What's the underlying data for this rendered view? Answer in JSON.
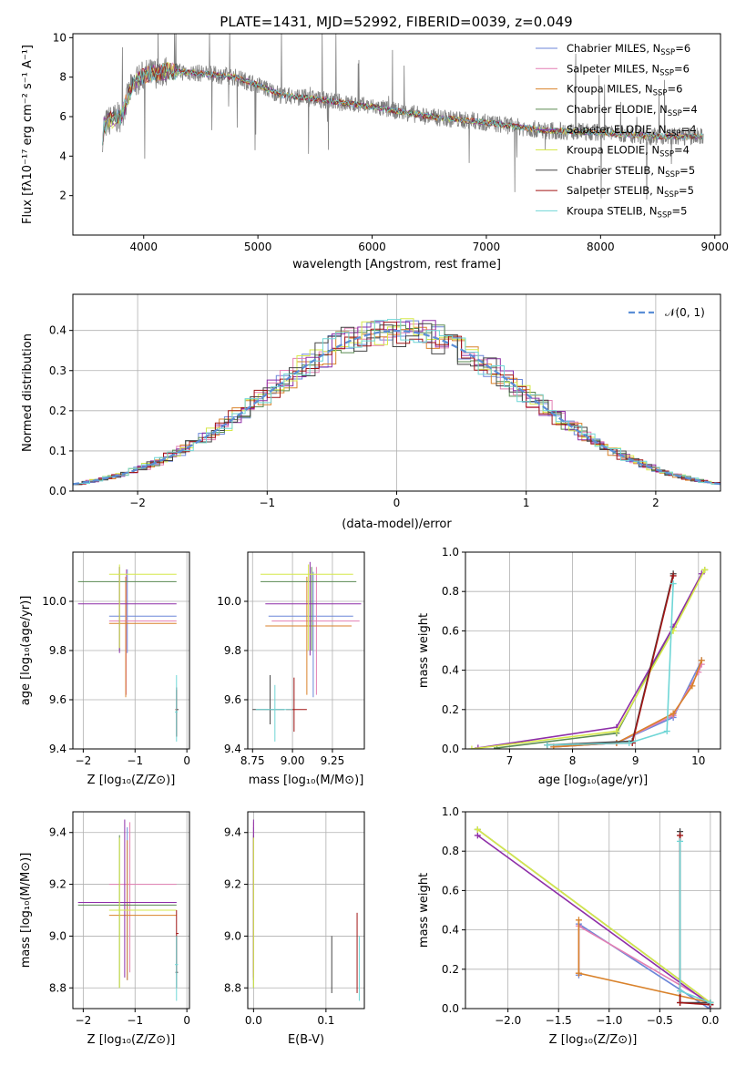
{
  "figure_title": "PLATE=1431, MJD=52992, FIBERID=0039, z=0.049",
  "colors": {
    "chabrier_miles": "#6b86d8",
    "salpeter_miles": "#e37fb3",
    "kroupa_miles": "#d9822b",
    "chabrier_elodie": "#5a8a52",
    "salpeter_elodie": "#8e2fa8",
    "kroupa_elodie": "#d6e84a",
    "chabrier_stelib": "#444444",
    "salpeter_stelib": "#a01515",
    "kroupa_stelib": "#6fd6d6",
    "data": "#808080",
    "normal": "#5b8ed6"
  },
  "chart_data": [
    {
      "id": "spectrum",
      "type": "line",
      "xlabel": "wavelength [Angstrom, rest frame]",
      "ylabel": "Flux [fλ10⁻¹⁷ erg cm⁻² s⁻¹ A⁻¹]",
      "xlim": [
        3380,
        9050
      ],
      "ylim": [
        0.0,
        10.2
      ],
      "xticks": [
        4000,
        5000,
        6000,
        7000,
        8000,
        9000
      ],
      "yticks": [
        2,
        4,
        6,
        8,
        10
      ],
      "legend_position": "top-right",
      "legend": [
        {
          "name": "Chabrier MILES",
          "nssp": "6",
          "color_key": "chabrier_miles"
        },
        {
          "name": "Salpeter MILES",
          "nssp": "6",
          "color_key": "salpeter_miles"
        },
        {
          "name": "Kroupa MILES",
          "nssp": "6",
          "color_key": "kroupa_miles"
        },
        {
          "name": "Chabrier ELODIE",
          "nssp": "4",
          "color_key": "chabrier_elodie"
        },
        {
          "name": "Salpeter ELODIE",
          "nssp": "4",
          "color_key": "salpeter_elodie"
        },
        {
          "name": "Kroupa ELODIE",
          "nssp": "4",
          "color_key": "kroupa_elodie"
        },
        {
          "name": "Chabrier STELIB",
          "nssp": "5",
          "color_key": "chabrier_stelib"
        },
        {
          "name": "Salpeter STELIB",
          "nssp": "5",
          "color_key": "salpeter_stelib"
        },
        {
          "name": "Kroupa STELIB",
          "nssp": "5",
          "color_key": "kroupa_stelib"
        }
      ],
      "continuum": {
        "x": [
          3650,
          3700,
          3800,
          3900,
          4000,
          4200,
          4500,
          4800,
          5000,
          5200,
          5500,
          6000,
          6500,
          7000,
          7500,
          8000,
          8500,
          8900
        ],
        "y": [
          5.5,
          5.8,
          6.0,
          7.6,
          8.1,
          8.3,
          8.2,
          8.0,
          7.6,
          7.1,
          6.9,
          6.5,
          6.0,
          5.7,
          5.3,
          5.2,
          5.0,
          5.0
        ]
      }
    },
    {
      "id": "residuals",
      "type": "step",
      "xlabel": "(data-model)/error",
      "ylabel": "Normed distribution",
      "xlim": [
        -2.5,
        2.5
      ],
      "ylim": [
        0.0,
        0.49
      ],
      "xticks": [
        -2,
        -1,
        0,
        1,
        2
      ],
      "yticks": [
        0.0,
        0.1,
        0.2,
        0.3,
        0.4
      ],
      "grid": true,
      "legend_position": "top-right",
      "normal_label": "𝒩(0, 1)",
      "bin_width": 0.1
    },
    {
      "id": "age_vs_Z",
      "type": "errorbar",
      "xlabel": "Z [log₁₀(Z/Z⊙)]",
      "ylabel": "age  [log₁₀(age/yr)]",
      "xlim": [
        -2.2,
        0.05
      ],
      "ylim": [
        9.4,
        10.2
      ],
      "xticks": [
        -2,
        -1,
        0
      ],
      "yticks": [
        9.4,
        9.6,
        9.8,
        10.0
      ],
      "grid": true,
      "points": [
        {
          "c": "chabrier_miles",
          "x": [
            -1.5,
            -1.15,
            -0.2
          ],
          "y": [
            9.79,
            9.94,
            10.13
          ]
        },
        {
          "c": "salpeter_miles",
          "x": [
            -1.5,
            -1.17,
            -0.2
          ],
          "y": [
            9.62,
            9.92,
            10.13
          ]
        },
        {
          "c": "kroupa_miles",
          "x": [
            -1.5,
            -1.18,
            -0.2
          ],
          "y": [
            9.61,
            9.91,
            10.1
          ]
        },
        {
          "c": "chabrier_elodie",
          "x": [
            -2.1,
            -1.3,
            -0.2
          ],
          "y": [
            9.8,
            10.08,
            10.14
          ]
        },
        {
          "c": "salpeter_elodie",
          "x": [
            -2.1,
            -1.3,
            -0.2
          ],
          "y": [
            9.79,
            9.99,
            10.14
          ]
        },
        {
          "c": "kroupa_elodie",
          "x": [
            -1.5,
            -1.3,
            -0.2
          ],
          "y": [
            9.81,
            10.11,
            10.15
          ]
        },
        {
          "c": "chabrier_stelib",
          "x": [
            -0.22,
            -0.2,
            -0.16
          ],
          "y": [
            9.45,
            9.56,
            9.65
          ]
        },
        {
          "c": "salpeter_stelib",
          "x": [
            -0.22,
            -0.2,
            -0.18
          ],
          "y": [
            9.45,
            9.56,
            9.64
          ]
        },
        {
          "c": "kroupa_stelib",
          "x": [
            -0.23,
            -0.2,
            -0.18
          ],
          "y": [
            9.43,
            9.55,
            9.7
          ]
        }
      ]
    },
    {
      "id": "age_vs_mass",
      "type": "errorbar",
      "xlabel": "mass [log₁₀(M/M⊙)]",
      "ylabel": "",
      "xlim": [
        8.72,
        9.45
      ],
      "ylim": [
        9.4,
        10.2
      ],
      "xticks": [
        8.75,
        9.0,
        9.25
      ],
      "yticks": [
        9.4,
        9.6,
        9.8,
        10.0
      ],
      "grid": true,
      "points": [
        {
          "c": "chabrier_miles",
          "x": [
            8.85,
            9.13,
            9.38
          ],
          "y": [
            9.61,
            9.94,
            10.12
          ]
        },
        {
          "c": "salpeter_miles",
          "x": [
            8.87,
            9.15,
            9.42
          ],
          "y": [
            9.62,
            9.92,
            10.14
          ]
        },
        {
          "c": "kroupa_miles",
          "x": [
            8.83,
            9.09,
            9.37
          ],
          "y": [
            9.62,
            9.9,
            10.1
          ]
        },
        {
          "c": "chabrier_elodie",
          "x": [
            8.8,
            9.12,
            9.4
          ],
          "y": [
            9.8,
            10.08,
            10.14
          ]
        },
        {
          "c": "salpeter_elodie",
          "x": [
            8.83,
            9.11,
            9.43
          ],
          "y": [
            9.78,
            9.99,
            10.16
          ]
        },
        {
          "c": "kroupa_elodie",
          "x": [
            8.8,
            9.1,
            9.38
          ],
          "y": [
            9.8,
            10.11,
            10.15
          ]
        },
        {
          "c": "chabrier_stelib",
          "x": [
            8.75,
            8.86,
            8.95
          ],
          "y": [
            9.5,
            9.56,
            9.7
          ]
        },
        {
          "c": "salpeter_stelib",
          "x": [
            8.96,
            9.01,
            9.09
          ],
          "y": [
            9.47,
            9.56,
            9.69
          ]
        },
        {
          "c": "kroupa_stelib",
          "x": [
            8.77,
            8.89,
            9.0
          ],
          "y": [
            9.43,
            9.56,
            9.66
          ]
        }
      ]
    },
    {
      "id": "weight_vs_age",
      "type": "line",
      "xlabel": "age  [log₁₀(age/yr)]",
      "ylabel": "mass weight",
      "xlim": [
        6.3,
        10.35
      ],
      "ylim": [
        0.0,
        1.0
      ],
      "xticks": [
        7,
        8,
        9,
        10
      ],
      "yticks": [
        0.0,
        0.2,
        0.4,
        0.6,
        0.8,
        1.0
      ],
      "grid": true,
      "series": [
        {
          "c": "chabrier_miles",
          "x": [
            7.7,
            8.7,
            9.6,
            10.05
          ],
          "y": [
            0.01,
            0.03,
            0.16,
            0.45
          ]
        },
        {
          "c": "salpeter_miles",
          "x": [
            7.7,
            8.7,
            9.6,
            10.0,
            10.05
          ],
          "y": [
            0.01,
            0.03,
            0.17,
            0.39,
            0.43
          ]
        },
        {
          "c": "kroupa_miles",
          "x": [
            7.7,
            8.7,
            9.6,
            9.9,
            10.05
          ],
          "y": [
            0.01,
            0.03,
            0.18,
            0.32,
            0.45
          ]
        },
        {
          "c": "chabrier_elodie",
          "x": [
            6.8,
            8.7,
            9.6,
            10.1
          ],
          "y": [
            0.005,
            0.08,
            0.62,
            0.91
          ]
        },
        {
          "c": "salpeter_elodie",
          "x": [
            6.5,
            8.7,
            9.6,
            10.05
          ],
          "y": [
            0.005,
            0.11,
            0.62,
            0.89
          ]
        },
        {
          "c": "kroupa_elodie",
          "x": [
            6.4,
            8.7,
            9.6,
            10.1
          ],
          "y": [
            0.0,
            0.09,
            0.6,
            0.91
          ]
        },
        {
          "c": "chabrier_stelib",
          "x": [
            7.6,
            8.95,
            9.6
          ],
          "y": [
            0.02,
            0.04,
            0.89
          ]
        },
        {
          "c": "salpeter_stelib",
          "x": [
            7.6,
            8.95,
            9.6
          ],
          "y": [
            0.02,
            0.03,
            0.88
          ]
        },
        {
          "c": "kroupa_stelib",
          "x": [
            7.6,
            8.9,
            9.5,
            9.6
          ],
          "y": [
            0.02,
            0.03,
            0.09,
            0.84
          ]
        }
      ]
    },
    {
      "id": "mass_vs_Z",
      "type": "errorbar",
      "xlabel": "Z [log₁₀(Z/Z⊙)]",
      "ylabel": "mass [log₁₀(M/M⊙)]",
      "xlim": [
        -2.2,
        0.05
      ],
      "ylim": [
        8.72,
        9.48
      ],
      "xticks": [
        -2,
        -1,
        0
      ],
      "yticks": [
        8.8,
        9.0,
        9.2,
        9.4
      ],
      "grid": true,
      "points": [
        {
          "c": "chabrier_miles",
          "x": [
            -1.5,
            -1.15,
            -0.2
          ],
          "y": [
            8.83,
            9.13,
            9.42
          ]
        },
        {
          "c": "salpeter_miles",
          "x": [
            -1.5,
            -1.1,
            -0.2
          ],
          "y": [
            8.86,
            9.2,
            9.44
          ]
        },
        {
          "c": "kroupa_miles",
          "x": [
            -1.5,
            -1.15,
            -0.2
          ],
          "y": [
            8.83,
            9.08,
            9.37
          ]
        },
        {
          "c": "chabrier_elodie",
          "x": [
            -2.1,
            -1.3,
            -0.2
          ],
          "y": [
            8.8,
            9.12,
            9.39
          ]
        },
        {
          "c": "salpeter_elodie",
          "x": [
            -2.1,
            -1.2,
            -0.2
          ],
          "y": [
            8.84,
            9.13,
            9.45
          ]
        },
        {
          "c": "kroupa_elodie",
          "x": [
            -1.5,
            -1.3,
            -0.2
          ],
          "y": [
            8.8,
            9.1,
            9.38
          ]
        },
        {
          "c": "chabrier_stelib",
          "x": [
            -0.22,
            -0.2,
            -0.17
          ],
          "y": [
            8.8,
            8.86,
            9.0
          ]
        },
        {
          "c": "salpeter_stelib",
          "x": [
            -0.21,
            -0.2,
            -0.16
          ],
          "y": [
            8.86,
            9.01,
            9.1
          ]
        },
        {
          "c": "kroupa_stelib",
          "x": [
            -0.23,
            -0.2,
            -0.17
          ],
          "y": [
            8.75,
            8.89,
            9.0
          ]
        }
      ]
    },
    {
      "id": "mass_vs_ebv",
      "type": "errorbar",
      "xlabel": "E(B-V)",
      "ylabel": "",
      "xlim": [
        -0.008,
        0.153
      ],
      "ylim": [
        8.72,
        9.48
      ],
      "xticks": [
        0.0,
        0.1
      ],
      "yticks": [
        8.8,
        9.0,
        9.2,
        9.4
      ],
      "grid": true,
      "points": [
        {
          "c": "chabrier_miles",
          "x": [
            0.0,
            0.0,
            0.0
          ],
          "y": [
            8.83,
            9.13,
            9.42
          ]
        },
        {
          "c": "salpeter_miles",
          "x": [
            0.0,
            0.0,
            0.0
          ],
          "y": [
            8.86,
            9.2,
            9.44
          ]
        },
        {
          "c": "kroupa_miles",
          "x": [
            0.0,
            0.0,
            0.0
          ],
          "y": [
            8.83,
            9.08,
            9.37
          ]
        },
        {
          "c": "chabrier_elodie",
          "x": [
            0.0,
            0.0,
            0.0
          ],
          "y": [
            8.8,
            9.12,
            9.39
          ]
        },
        {
          "c": "salpeter_elodie",
          "x": [
            0.0,
            0.0,
            0.0
          ],
          "y": [
            8.84,
            9.13,
            9.45
          ]
        },
        {
          "c": "kroupa_elodie",
          "x": [
            0.0,
            0.0,
            0.0
          ],
          "y": [
            8.8,
            9.1,
            9.38
          ]
        },
        {
          "c": "chabrier_stelib",
          "x": [
            0.108,
            0.108,
            0.108
          ],
          "y": [
            8.78,
            8.86,
            9.0
          ]
        },
        {
          "c": "salpeter_stelib",
          "x": [
            0.143,
            0.143,
            0.143
          ],
          "y": [
            8.78,
            9.01,
            9.09
          ]
        },
        {
          "c": "kroupa_stelib",
          "x": [
            0.146,
            0.146,
            0.146
          ],
          "y": [
            8.75,
            8.89,
            9.0
          ]
        }
      ]
    },
    {
      "id": "weight_vs_Z",
      "type": "line",
      "xlabel": "Z [log₁₀(Z/Z⊙)]",
      "ylabel": "mass weight",
      "xlim": [
        -2.42,
        0.1
      ],
      "ylim": [
        0.0,
        1.0
      ],
      "xticks": [
        -2.0,
        -1.5,
        -1.0,
        -0.5,
        0.0
      ],
      "yticks": [
        0.0,
        0.2,
        0.4,
        0.6,
        0.8,
        1.0
      ],
      "grid": true,
      "series": [
        {
          "c": "chabrier_miles",
          "x": [
            -1.3,
            -1.3,
            -0.01,
            0.0
          ],
          "y": [
            0.17,
            0.43,
            0.0,
            0.03
          ]
        },
        {
          "c": "salpeter_miles",
          "x": [
            -1.3,
            -1.3,
            0.0
          ],
          "y": [
            0.18,
            0.42,
            0.03
          ]
        },
        {
          "c": "kroupa_miles",
          "x": [
            -1.3,
            -1.3,
            -1.3,
            0.0
          ],
          "y": [
            0.45,
            0.18,
            0.18,
            0.03
          ]
        },
        {
          "c": "chabrier_elodie",
          "x": [
            -2.3,
            0.0
          ],
          "y": [
            0.91,
            0.03
          ]
        },
        {
          "c": "salpeter_elodie",
          "x": [
            -2.3,
            0.0
          ],
          "y": [
            0.88,
            0.02
          ]
        },
        {
          "c": "kroupa_elodie",
          "x": [
            -2.3,
            0.0
          ],
          "y": [
            0.91,
            0.03
          ]
        },
        {
          "c": "chabrier_stelib",
          "x": [
            -0.3,
            -0.3,
            0.0
          ],
          "y": [
            0.9,
            0.03,
            0.03
          ]
        },
        {
          "c": "salpeter_stelib",
          "x": [
            -0.3,
            -0.3,
            0.0
          ],
          "y": [
            0.88,
            0.03,
            0.02
          ]
        },
        {
          "c": "kroupa_stelib",
          "x": [
            -0.3,
            -0.3,
            0.0
          ],
          "y": [
            0.85,
            0.09,
            0.03
          ]
        }
      ]
    }
  ]
}
